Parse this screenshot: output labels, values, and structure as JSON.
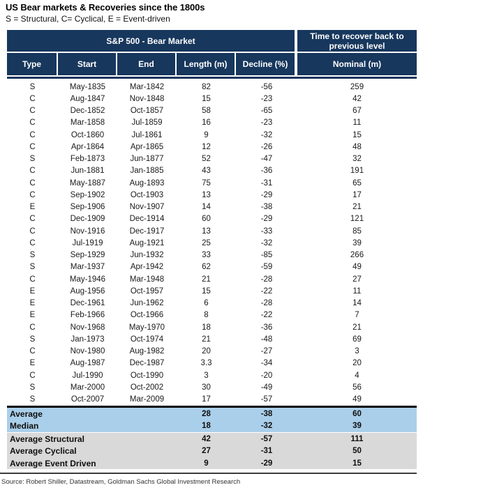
{
  "page": {
    "title": "US Bear markets & Recoveries since the 1800s",
    "subtitle": "S = Structural, C= Cyclical, E = Event-driven",
    "source": "Source: Robert Shiller, Datastream, Goldman Sachs Global Investment Research"
  },
  "colors": {
    "header_navy": "#17375d",
    "summary_blue": "#aacfea",
    "summary_gray": "#d9d9d9"
  },
  "table": {
    "group_headers": [
      {
        "label": "S&P 500 - Bear Market"
      },
      {
        "label": "Time to recover back to previous level"
      }
    ],
    "columns": [
      "Type",
      "Start",
      "End",
      "Length (m)",
      "Decline (%)",
      "Nominal (m)"
    ],
    "rows": [
      {
        "type": "S",
        "start": "May-1835",
        "end": "Mar-1842",
        "length": "82",
        "decline": "-56",
        "nominal": "259"
      },
      {
        "type": "C",
        "start": "Aug-1847",
        "end": "Nov-1848",
        "length": "15",
        "decline": "-23",
        "nominal": "42"
      },
      {
        "type": "C",
        "start": "Dec-1852",
        "end": "Oct-1857",
        "length": "58",
        "decline": "-65",
        "nominal": "67"
      },
      {
        "type": "C",
        "start": "Mar-1858",
        "end": "Jul-1859",
        "length": "16",
        "decline": "-23",
        "nominal": "11"
      },
      {
        "type": "C",
        "start": "Oct-1860",
        "end": "Jul-1861",
        "length": "9",
        "decline": "-32",
        "nominal": "15"
      },
      {
        "type": "C",
        "start": "Apr-1864",
        "end": "Apr-1865",
        "length": "12",
        "decline": "-26",
        "nominal": "48"
      },
      {
        "type": "S",
        "start": "Feb-1873",
        "end": "Jun-1877",
        "length": "52",
        "decline": "-47",
        "nominal": "32"
      },
      {
        "type": "C",
        "start": "Jun-1881",
        "end": "Jan-1885",
        "length": "43",
        "decline": "-36",
        "nominal": "191"
      },
      {
        "type": "C",
        "start": "May-1887",
        "end": "Aug-1893",
        "length": "75",
        "decline": "-31",
        "nominal": "65"
      },
      {
        "type": "C",
        "start": "Sep-1902",
        "end": "Oct-1903",
        "length": "13",
        "decline": "-29",
        "nominal": "17"
      },
      {
        "type": "E",
        "start": "Sep-1906",
        "end": "Nov-1907",
        "length": "14",
        "decline": "-38",
        "nominal": "21"
      },
      {
        "type": "C",
        "start": "Dec-1909",
        "end": "Dec-1914",
        "length": "60",
        "decline": "-29",
        "nominal": "121"
      },
      {
        "type": "C",
        "start": "Nov-1916",
        "end": "Dec-1917",
        "length": "13",
        "decline": "-33",
        "nominal": "85"
      },
      {
        "type": "C",
        "start": "Jul-1919",
        "end": "Aug-1921",
        "length": "25",
        "decline": "-32",
        "nominal": "39"
      },
      {
        "type": "S",
        "start": "Sep-1929",
        "end": "Jun-1932",
        "length": "33",
        "decline": "-85",
        "nominal": "266"
      },
      {
        "type": "S",
        "start": "Mar-1937",
        "end": "Apr-1942",
        "length": "62",
        "decline": "-59",
        "nominal": "49"
      },
      {
        "type": "C",
        "start": "May-1946",
        "end": "Mar-1948",
        "length": "21",
        "decline": "-28",
        "nominal": "27"
      },
      {
        "type": "E",
        "start": "Aug-1956",
        "end": "Oct-1957",
        "length": "15",
        "decline": "-22",
        "nominal": "11"
      },
      {
        "type": "E",
        "start": "Dec-1961",
        "end": "Jun-1962",
        "length": "6",
        "decline": "-28",
        "nominal": "14"
      },
      {
        "type": "E",
        "start": "Feb-1966",
        "end": "Oct-1966",
        "length": "8",
        "decline": "-22",
        "nominal": "7"
      },
      {
        "type": "C",
        "start": "Nov-1968",
        "end": "May-1970",
        "length": "18",
        "decline": "-36",
        "nominal": "21"
      },
      {
        "type": "S",
        "start": "Jan-1973",
        "end": "Oct-1974",
        "length": "21",
        "decline": "-48",
        "nominal": "69"
      },
      {
        "type": "C",
        "start": "Nov-1980",
        "end": "Aug-1982",
        "length": "20",
        "decline": "-27",
        "nominal": "3"
      },
      {
        "type": "E",
        "start": "Aug-1987",
        "end": "Dec-1987",
        "length": "3.3",
        "decline": "-34",
        "nominal": "20"
      },
      {
        "type": "C",
        "start": "Jul-1990",
        "end": "Oct-1990",
        "length": "3",
        "decline": "-20",
        "nominal": "4"
      },
      {
        "type": "S",
        "start": "Mar-2000",
        "end": "Oct-2002",
        "length": "30",
        "decline": "-49",
        "nominal": "56"
      },
      {
        "type": "S",
        "start": "Oct-2007",
        "end": "Mar-2009",
        "length": "17",
        "decline": "-57",
        "nominal": "49"
      }
    ],
    "summary_rows": [
      {
        "label": "Average",
        "length": "28",
        "decline": "-38",
        "nominal": "60",
        "highlight": "blue"
      },
      {
        "label": "Median",
        "length": "18",
        "decline": "-32",
        "nominal": "39",
        "highlight": "blue"
      },
      {
        "label": "Average Structural",
        "length": "42",
        "decline": "-57",
        "nominal": "111",
        "highlight": "gray"
      },
      {
        "label": "Average Cyclical",
        "length": "27",
        "decline": "-31",
        "nominal": "50",
        "highlight": "gray"
      },
      {
        "label": "Average Event Driven",
        "length": "9",
        "decline": "-29",
        "nominal": "15",
        "highlight": "gray"
      }
    ]
  }
}
